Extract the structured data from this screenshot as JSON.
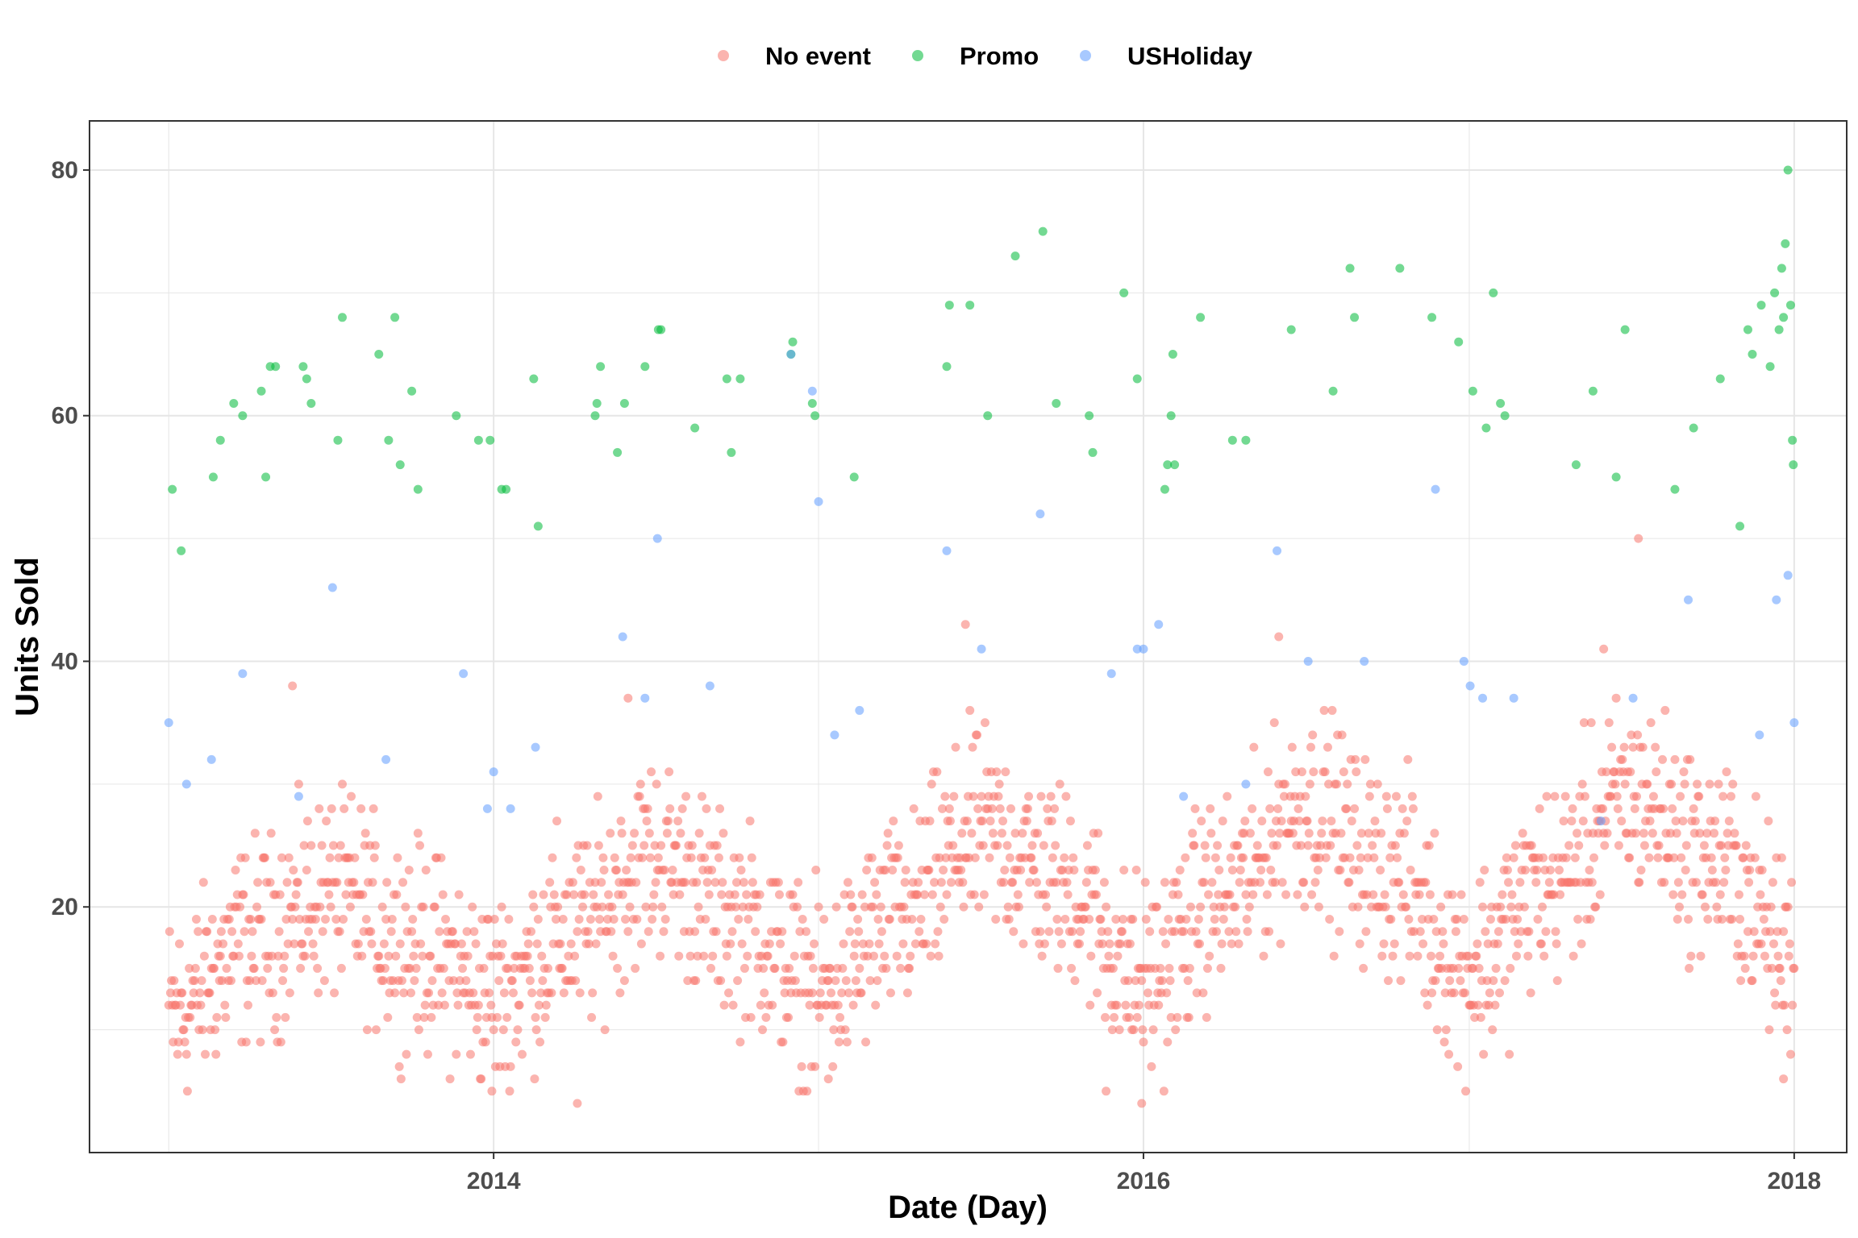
{
  "chart_data": {
    "type": "scatter",
    "title": "",
    "xlabel": "Date (Day)",
    "ylabel": "Units Sold",
    "x_ticks": [
      "2014",
      "2016",
      "2018"
    ],
    "y_ticks": [
      20,
      40,
      60,
      80
    ],
    "xlim": [
      "2012-10-04",
      "2018-03-01"
    ],
    "ylim": [
      0,
      84
    ],
    "grid": true,
    "legend_position": "top",
    "colors": {
      "No event": "#F8766D",
      "Promo": "#00BA38",
      "USHoliday": "#619CFF"
    },
    "series": [
      {
        "name": "No event",
        "color": "#F8766D",
        "baseline": [
          {
            "x": "2013-01-01",
            "y": 11
          },
          {
            "x": "2013-04-01",
            "y": 17
          },
          {
            "x": "2013-07-01",
            "y": 21
          },
          {
            "x": "2013-10-01",
            "y": 17
          },
          {
            "x": "2014-01-01",
            "y": 13
          },
          {
            "x": "2014-04-01",
            "y": 18
          },
          {
            "x": "2014-07-01",
            "y": 24
          },
          {
            "x": "2014-10-01",
            "y": 19
          },
          {
            "x": "2015-01-01",
            "y": 13
          },
          {
            "x": "2015-04-01",
            "y": 19
          },
          {
            "x": "2015-07-01",
            "y": 26
          },
          {
            "x": "2015-10-01",
            "y": 22
          },
          {
            "x": "2016-01-01",
            "y": 14
          },
          {
            "x": "2016-04-01",
            "y": 21
          },
          {
            "x": "2016-07-01",
            "y": 28
          },
          {
            "x": "2016-10-01",
            "y": 23
          },
          {
            "x": "2017-01-01",
            "y": 15
          },
          {
            "x": "2017-04-01",
            "y": 22
          },
          {
            "x": "2017-07-01",
            "y": 29
          },
          {
            "x": "2017-10-01",
            "y": 24
          },
          {
            "x": "2018-01-01",
            "y": 16
          }
        ],
        "spread": 6,
        "points": [
          {
            "x": "2013-12-30",
            "y": 5
          },
          {
            "x": "2014-04-05",
            "y": 4
          },
          {
            "x": "2015-01-12",
            "y": 6
          },
          {
            "x": "2015-11-20",
            "y": 5
          },
          {
            "x": "2015-12-30",
            "y": 4
          },
          {
            "x": "2017-12-20",
            "y": 6
          },
          {
            "x": "2015-06-15",
            "y": 43
          },
          {
            "x": "2016-06-01",
            "y": 42
          },
          {
            "x": "2017-06-01",
            "y": 41
          },
          {
            "x": "2017-07-10",
            "y": 50
          },
          {
            "x": "2014-06-01",
            "y": 37
          },
          {
            "x": "2013-05-20",
            "y": 38
          }
        ]
      },
      {
        "name": "Promo",
        "color": "#00BA38",
        "points": [
          {
            "x": "2013-01-05",
            "y": 54
          },
          {
            "x": "2013-01-15",
            "y": 49
          },
          {
            "x": "2013-02-20",
            "y": 55
          },
          {
            "x": "2013-02-28",
            "y": 58
          },
          {
            "x": "2013-03-15",
            "y": 61
          },
          {
            "x": "2013-03-25",
            "y": 60
          },
          {
            "x": "2013-04-15",
            "y": 62
          },
          {
            "x": "2013-04-20",
            "y": 55
          },
          {
            "x": "2013-04-25",
            "y": 64
          },
          {
            "x": "2013-05-01",
            "y": 64
          },
          {
            "x": "2013-06-01",
            "y": 64
          },
          {
            "x": "2013-06-05",
            "y": 63
          },
          {
            "x": "2013-06-10",
            "y": 61
          },
          {
            "x": "2013-07-10",
            "y": 58
          },
          {
            "x": "2013-07-15",
            "y": 68
          },
          {
            "x": "2013-08-25",
            "y": 65
          },
          {
            "x": "2013-09-05",
            "y": 58
          },
          {
            "x": "2013-09-12",
            "y": 68
          },
          {
            "x": "2013-09-18",
            "y": 56
          },
          {
            "x": "2013-10-01",
            "y": 62
          },
          {
            "x": "2013-10-08",
            "y": 54
          },
          {
            "x": "2013-11-20",
            "y": 60
          },
          {
            "x": "2013-12-15",
            "y": 58
          },
          {
            "x": "2013-12-28",
            "y": 58
          },
          {
            "x": "2014-01-10",
            "y": 54
          },
          {
            "x": "2014-01-15",
            "y": 54
          },
          {
            "x": "2014-02-15",
            "y": 63
          },
          {
            "x": "2014-02-20",
            "y": 51
          },
          {
            "x": "2014-04-25",
            "y": 60
          },
          {
            "x": "2014-04-27",
            "y": 61
          },
          {
            "x": "2014-05-01",
            "y": 64
          },
          {
            "x": "2014-05-20",
            "y": 57
          },
          {
            "x": "2014-05-28",
            "y": 61
          },
          {
            "x": "2014-06-20",
            "y": 64
          },
          {
            "x": "2014-07-05",
            "y": 67
          },
          {
            "x": "2014-07-08",
            "y": 67
          },
          {
            "x": "2014-08-15",
            "y": 59
          },
          {
            "x": "2014-09-20",
            "y": 63
          },
          {
            "x": "2014-09-25",
            "y": 57
          },
          {
            "x": "2014-10-05",
            "y": 63
          },
          {
            "x": "2014-12-01",
            "y": 65
          },
          {
            "x": "2014-12-03",
            "y": 66
          },
          {
            "x": "2014-12-25",
            "y": 61
          },
          {
            "x": "2014-12-28",
            "y": 60
          },
          {
            "x": "2015-02-10",
            "y": 55
          },
          {
            "x": "2015-05-25",
            "y": 64
          },
          {
            "x": "2015-05-28",
            "y": 69
          },
          {
            "x": "2015-06-20",
            "y": 69
          },
          {
            "x": "2015-07-10",
            "y": 60
          },
          {
            "x": "2015-08-10",
            "y": 73
          },
          {
            "x": "2015-09-10",
            "y": 75
          },
          {
            "x": "2015-09-25",
            "y": 61
          },
          {
            "x": "2015-11-01",
            "y": 60
          },
          {
            "x": "2015-11-05",
            "y": 57
          },
          {
            "x": "2015-12-10",
            "y": 70
          },
          {
            "x": "2015-12-25",
            "y": 63
          },
          {
            "x": "2016-01-25",
            "y": 54
          },
          {
            "x": "2016-01-28",
            "y": 56
          },
          {
            "x": "2016-02-01",
            "y": 60
          },
          {
            "x": "2016-02-03",
            "y": 65
          },
          {
            "x": "2016-02-05",
            "y": 56
          },
          {
            "x": "2016-03-05",
            "y": 68
          },
          {
            "x": "2016-04-10",
            "y": 58
          },
          {
            "x": "2016-04-25",
            "y": 58
          },
          {
            "x": "2016-06-15",
            "y": 67
          },
          {
            "x": "2016-08-01",
            "y": 62
          },
          {
            "x": "2016-08-20",
            "y": 72
          },
          {
            "x": "2016-08-25",
            "y": 68
          },
          {
            "x": "2016-10-15",
            "y": 72
          },
          {
            "x": "2016-11-20",
            "y": 68
          },
          {
            "x": "2016-12-20",
            "y": 66
          },
          {
            "x": "2017-01-05",
            "y": 62
          },
          {
            "x": "2017-01-20",
            "y": 59
          },
          {
            "x": "2017-01-28",
            "y": 70
          },
          {
            "x": "2017-02-05",
            "y": 61
          },
          {
            "x": "2017-02-10",
            "y": 60
          },
          {
            "x": "2017-05-01",
            "y": 56
          },
          {
            "x": "2017-05-20",
            "y": 62
          },
          {
            "x": "2017-06-15",
            "y": 55
          },
          {
            "x": "2017-06-25",
            "y": 67
          },
          {
            "x": "2017-08-20",
            "y": 54
          },
          {
            "x": "2017-09-10",
            "y": 59
          },
          {
            "x": "2017-10-10",
            "y": 63
          },
          {
            "x": "2017-11-10",
            "y": 67
          },
          {
            "x": "2017-11-25",
            "y": 69
          },
          {
            "x": "2017-12-20",
            "y": 68
          },
          {
            "x": "2017-12-25",
            "y": 80
          },
          {
            "x": "2017-12-28",
            "y": 69
          },
          {
            "x": "2017-12-10",
            "y": 70
          },
          {
            "x": "2017-12-18",
            "y": 72
          },
          {
            "x": "2017-12-05",
            "y": 64
          },
          {
            "x": "2017-11-15",
            "y": 65
          },
          {
            "x": "2017-11-01",
            "y": 51
          },
          {
            "x": "2017-12-22",
            "y": 74
          },
          {
            "x": "2017-12-15",
            "y": 67
          },
          {
            "x": "2017-12-30",
            "y": 58
          },
          {
            "x": "2017-12-31",
            "y": 56
          }
        ]
      },
      {
        "name": "USHoliday",
        "color": "#619CFF",
        "points": [
          {
            "x": "2013-01-01",
            "y": 35
          },
          {
            "x": "2013-01-21",
            "y": 30
          },
          {
            "x": "2013-02-18",
            "y": 32
          },
          {
            "x": "2013-03-25",
            "y": 39
          },
          {
            "x": "2013-05-27",
            "y": 29
          },
          {
            "x": "2013-07-04",
            "y": 46
          },
          {
            "x": "2013-09-02",
            "y": 32
          },
          {
            "x": "2013-11-28",
            "y": 39
          },
          {
            "x": "2013-12-25",
            "y": 28
          },
          {
            "x": "2014-01-01",
            "y": 31
          },
          {
            "x": "2014-01-20",
            "y": 28
          },
          {
            "x": "2014-02-17",
            "y": 33
          },
          {
            "x": "2014-05-26",
            "y": 42
          },
          {
            "x": "2014-07-04",
            "y": 50
          },
          {
            "x": "2014-09-01",
            "y": 38
          },
          {
            "x": "2014-06-20",
            "y": 37
          },
          {
            "x": "2014-12-01",
            "y": 65
          },
          {
            "x": "2014-12-25",
            "y": 62
          },
          {
            "x": "2015-01-01",
            "y": 53
          },
          {
            "x": "2015-01-19",
            "y": 34
          },
          {
            "x": "2015-02-16",
            "y": 36
          },
          {
            "x": "2015-05-25",
            "y": 49
          },
          {
            "x": "2015-07-03",
            "y": 41
          },
          {
            "x": "2015-09-07",
            "y": 52
          },
          {
            "x": "2015-11-26",
            "y": 39
          },
          {
            "x": "2015-12-25",
            "y": 41
          },
          {
            "x": "2016-01-01",
            "y": 41
          },
          {
            "x": "2016-01-18",
            "y": 43
          },
          {
            "x": "2016-02-15",
            "y": 29
          },
          {
            "x": "2016-04-25",
            "y": 30
          },
          {
            "x": "2016-05-30",
            "y": 49
          },
          {
            "x": "2016-07-04",
            "y": 40
          },
          {
            "x": "2016-09-05",
            "y": 40
          },
          {
            "x": "2016-11-24",
            "y": 54
          },
          {
            "x": "2016-12-26",
            "y": 40
          },
          {
            "x": "2017-01-02",
            "y": 38
          },
          {
            "x": "2017-01-16",
            "y": 37
          },
          {
            "x": "2017-02-20",
            "y": 37
          },
          {
            "x": "2017-05-29",
            "y": 27
          },
          {
            "x": "2017-07-04",
            "y": 37
          },
          {
            "x": "2017-09-04",
            "y": 45
          },
          {
            "x": "2017-11-23",
            "y": 34
          },
          {
            "x": "2017-12-12",
            "y": 45
          },
          {
            "x": "2017-12-25",
            "y": 47
          },
          {
            "x": "2018-01-01",
            "y": 35
          }
        ]
      }
    ]
  }
}
